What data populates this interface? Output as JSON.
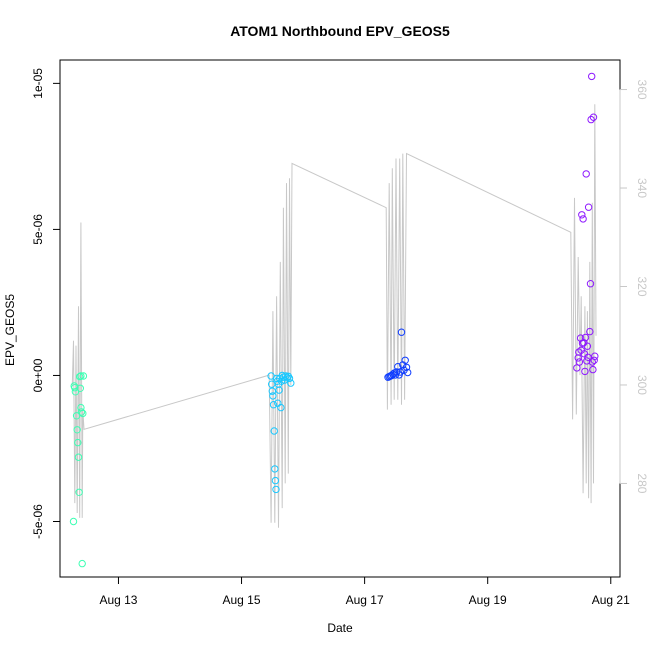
{
  "chart_data": {
    "type": "scatter",
    "title": "ATOM1 Northbound EPV_GEOS5",
    "xlabel": "Date",
    "ylabel": "EPV_GEOS5",
    "x_axis": {
      "unit": "day of August",
      "range": [
        12.05,
        21.15
      ],
      "ticks": [
        {
          "value": 13,
          "label": "Aug 13"
        },
        {
          "value": 15,
          "label": "Aug 15"
        },
        {
          "value": 17,
          "label": "Aug 17"
        },
        {
          "value": 19,
          "label": "Aug 19"
        },
        {
          "value": 21,
          "label": "Aug 21"
        }
      ]
    },
    "y_axis": {
      "range": [
        -6.9e-06,
        1.08e-05
      ],
      "ticks": [
        {
          "value": -5e-06,
          "label": "-5e-06"
        },
        {
          "value": 0,
          "label": "0e+00"
        },
        {
          "value": 5e-06,
          "label": "5e-06"
        },
        {
          "value": 1e-05,
          "label": "1e-05"
        }
      ]
    },
    "y2_axis": {
      "color": "#c8c8c8",
      "range": [
        261,
        366
      ],
      "ticks": [
        {
          "value": 280,
          "label": "280"
        },
        {
          "value": 300,
          "label": "300"
        },
        {
          "value": 320,
          "label": "320"
        },
        {
          "value": 340,
          "label": "340"
        },
        {
          "value": 360,
          "label": "360"
        }
      ]
    },
    "grid": false,
    "legend": "none",
    "colors": {
      "line": "#c8c8c8",
      "group1": "#3dffb3",
      "group2": "#1ac8ff",
      "group3": "#0f3dff",
      "group4": "#8f1aff"
    },
    "series": [
      {
        "color": "#3dffb3",
        "points": [
          {
            "x": 12.28,
            "y": -3.6e-07
          },
          {
            "x": 12.29,
            "y": -4.2e-07
          },
          {
            "x": 12.3,
            "y": -5.6e-07
          },
          {
            "x": 12.32,
            "y": -1.38e-06
          },
          {
            "x": 12.33,
            "y": -1.86e-06
          },
          {
            "x": 12.34,
            "y": -2.3e-06
          },
          {
            "x": 12.35,
            "y": -2.8e-06
          },
          {
            "x": 12.36,
            "y": -4e-06
          },
          {
            "x": 12.27,
            "y": -5e-06
          },
          {
            "x": 12.38,
            "y": -4.4e-07
          },
          {
            "x": 12.39,
            "y": -1.1e-06
          },
          {
            "x": 12.4,
            "y": -1.25e-06
          },
          {
            "x": 12.41,
            "y": -6.44e-06
          },
          {
            "x": 12.37,
            "y": -4e-08
          },
          {
            "x": 12.42,
            "y": -1.3e-06
          },
          {
            "x": 12.43,
            "y": -2e-08
          },
          {
            "x": 12.39,
            "y": -2e-08
          }
        ]
      },
      {
        "color": "#1ac8ff",
        "points": [
          {
            "x": 15.48,
            "y": -2e-08
          },
          {
            "x": 15.49,
            "y": -3e-07
          },
          {
            "x": 15.5,
            "y": -5.4e-07
          },
          {
            "x": 15.51,
            "y": -7e-07
          },
          {
            "x": 15.52,
            "y": -1e-06
          },
          {
            "x": 15.53,
            "y": -1.9e-06
          },
          {
            "x": 15.54,
            "y": -3.2e-06
          },
          {
            "x": 15.55,
            "y": -3.6e-06
          },
          {
            "x": 15.56,
            "y": -3.9e-06
          },
          {
            "x": 15.57,
            "y": -1e-07
          },
          {
            "x": 15.58,
            "y": -2e-07
          },
          {
            "x": 15.59,
            "y": -9.5e-07
          },
          {
            "x": 15.6,
            "y": -3e-07
          },
          {
            "x": 15.61,
            "y": -5e-07
          },
          {
            "x": 15.62,
            "y": -1e-07
          },
          {
            "x": 15.64,
            "y": -1.1e-06
          },
          {
            "x": 15.65,
            "y": -2e-07
          },
          {
            "x": 15.66,
            "y": 0.0
          },
          {
            "x": 15.68,
            "y": -6e-08
          },
          {
            "x": 15.7,
            "y": -1.6e-07
          },
          {
            "x": 15.72,
            "y": -2e-08
          },
          {
            "x": 15.74,
            "y": -8e-08
          },
          {
            "x": 15.76,
            "y": -3e-08
          },
          {
            "x": 15.78,
            "y": -1e-07
          },
          {
            "x": 15.8,
            "y": -2.6e-07
          }
        ]
      },
      {
        "color": "#0f3dff",
        "points": [
          {
            "x": 17.38,
            "y": -6e-08
          },
          {
            "x": 17.4,
            "y": -4e-08
          },
          {
            "x": 17.42,
            "y": -2e-08
          },
          {
            "x": 17.44,
            "y": 0.0
          },
          {
            "x": 17.46,
            "y": 4e-08
          },
          {
            "x": 17.48,
            "y": 8e-08
          },
          {
            "x": 17.5,
            "y": 2e-08
          },
          {
            "x": 17.52,
            "y": 1.2e-07
          },
          {
            "x": 17.54,
            "y": 3e-07
          },
          {
            "x": 17.56,
            "y": 2e-08
          },
          {
            "x": 17.58,
            "y": 1.2e-07
          },
          {
            "x": 17.6,
            "y": 1.48e-06
          },
          {
            "x": 17.62,
            "y": 3.6e-07
          },
          {
            "x": 17.64,
            "y": 1.8e-07
          },
          {
            "x": 17.66,
            "y": 5.2e-07
          },
          {
            "x": 17.68,
            "y": 2.8e-07
          },
          {
            "x": 17.7,
            "y": 1e-07
          }
        ]
      },
      {
        "color": "#8f1aff",
        "points": [
          {
            "x": 20.45,
            "y": 2.6e-07
          },
          {
            "x": 20.47,
            "y": 6e-07
          },
          {
            "x": 20.49,
            "y": 4.6e-07
          },
          {
            "x": 20.51,
            "y": 1.28e-06
          },
          {
            "x": 20.53,
            "y": 5.5e-06
          },
          {
            "x": 20.54,
            "y": 1.1e-06
          },
          {
            "x": 20.55,
            "y": 5.36e-06
          },
          {
            "x": 20.57,
            "y": 7.4e-07
          },
          {
            "x": 20.59,
            "y": 1.3e-06
          },
          {
            "x": 20.6,
            "y": 6.9e-06
          },
          {
            "x": 20.61,
            "y": 5e-07
          },
          {
            "x": 20.62,
            "y": 1e-06
          },
          {
            "x": 20.64,
            "y": 5.76e-06
          },
          {
            "x": 20.66,
            "y": 1.5e-06
          },
          {
            "x": 20.67,
            "y": 3.14e-06
          },
          {
            "x": 20.68,
            "y": 8.76e-06
          },
          {
            "x": 20.69,
            "y": 1.024e-05
          },
          {
            "x": 20.7,
            "y": 4.6e-07
          },
          {
            "x": 20.71,
            "y": 2e-07
          },
          {
            "x": 20.72,
            "y": 8.84e-06
          },
          {
            "x": 20.73,
            "y": 5.2e-07
          },
          {
            "x": 20.74,
            "y": 6.6e-07
          },
          {
            "x": 20.48,
            "y": 8e-07
          },
          {
            "x": 20.52,
            "y": 8.6e-07
          },
          {
            "x": 20.56,
            "y": 1.12e-06
          },
          {
            "x": 20.58,
            "y": 1.4e-07
          },
          {
            "x": 20.63,
            "y": 6.2e-07
          }
        ]
      }
    ],
    "secondary_line": {
      "color": "#c8c8c8",
      "points": [
        {
          "x": 12.25,
          "y2": 300.0
        },
        {
          "x": 12.27,
          "y2": 309.0
        },
        {
          "x": 12.29,
          "y2": 276.0
        },
        {
          "x": 12.31,
          "y2": 308.0
        },
        {
          "x": 12.33,
          "y2": 274.0
        },
        {
          "x": 12.35,
          "y2": 316.0
        },
        {
          "x": 12.37,
          "y2": 273.0
        },
        {
          "x": 12.39,
          "y2": 333.0
        },
        {
          "x": 12.41,
          "y2": 273.0
        },
        {
          "x": 12.42,
          "y2": 295.0
        },
        {
          "x": 12.44,
          "y2": 291.0
        },
        {
          "x": 15.45,
          "y2": 302.0
        },
        {
          "x": 15.48,
          "y2": 272.0
        },
        {
          "x": 15.51,
          "y2": 315.0
        },
        {
          "x": 15.54,
          "y2": 272.0
        },
        {
          "x": 15.57,
          "y2": 318.0
        },
        {
          "x": 15.6,
          "y2": 271.0
        },
        {
          "x": 15.63,
          "y2": 325.0
        },
        {
          "x": 15.66,
          "y2": 275.0
        },
        {
          "x": 15.68,
          "y2": 336.0
        },
        {
          "x": 15.71,
          "y2": 280.0
        },
        {
          "x": 15.73,
          "y2": 341.0
        },
        {
          "x": 15.76,
          "y2": 282.0
        },
        {
          "x": 15.78,
          "y2": 342.0
        },
        {
          "x": 15.8,
          "y2": 300.0
        },
        {
          "x": 15.82,
          "y2": 345.0
        },
        {
          "x": 17.35,
          "y2": 336.0
        },
        {
          "x": 17.37,
          "y2": 295.0
        },
        {
          "x": 17.4,
          "y2": 341.0
        },
        {
          "x": 17.43,
          "y2": 296.0
        },
        {
          "x": 17.45,
          "y2": 344.0
        },
        {
          "x": 17.48,
          "y2": 297.0
        },
        {
          "x": 17.51,
          "y2": 346.0
        },
        {
          "x": 17.54,
          "y2": 297.0
        },
        {
          "x": 17.57,
          "y2": 346.0
        },
        {
          "x": 17.6,
          "y2": 296.0
        },
        {
          "x": 17.62,
          "y2": 347.0
        },
        {
          "x": 17.65,
          "y2": 297.0
        },
        {
          "x": 17.68,
          "y2": 347.0
        },
        {
          "x": 20.35,
          "y2": 331.0
        },
        {
          "x": 20.38,
          "y2": 293.0
        },
        {
          "x": 20.41,
          "y2": 338.0
        },
        {
          "x": 20.44,
          "y2": 294.0
        },
        {
          "x": 20.47,
          "y2": 326.0
        },
        {
          "x": 20.5,
          "y2": 302.0
        },
        {
          "x": 20.52,
          "y2": 318.0
        },
        {
          "x": 20.55,
          "y2": 278.0
        },
        {
          "x": 20.58,
          "y2": 316.0
        },
        {
          "x": 20.6,
          "y2": 280.0
        },
        {
          "x": 20.62,
          "y2": 315.0
        },
        {
          "x": 20.64,
          "y2": 277.0
        },
        {
          "x": 20.66,
          "y2": 325.0
        },
        {
          "x": 20.68,
          "y2": 276.0
        },
        {
          "x": 20.7,
          "y2": 337.0
        },
        {
          "x": 20.72,
          "y2": 280.0
        },
        {
          "x": 20.74,
          "y2": 357.0
        },
        {
          "x": 20.76,
          "y2": 310.0
        }
      ]
    }
  }
}
